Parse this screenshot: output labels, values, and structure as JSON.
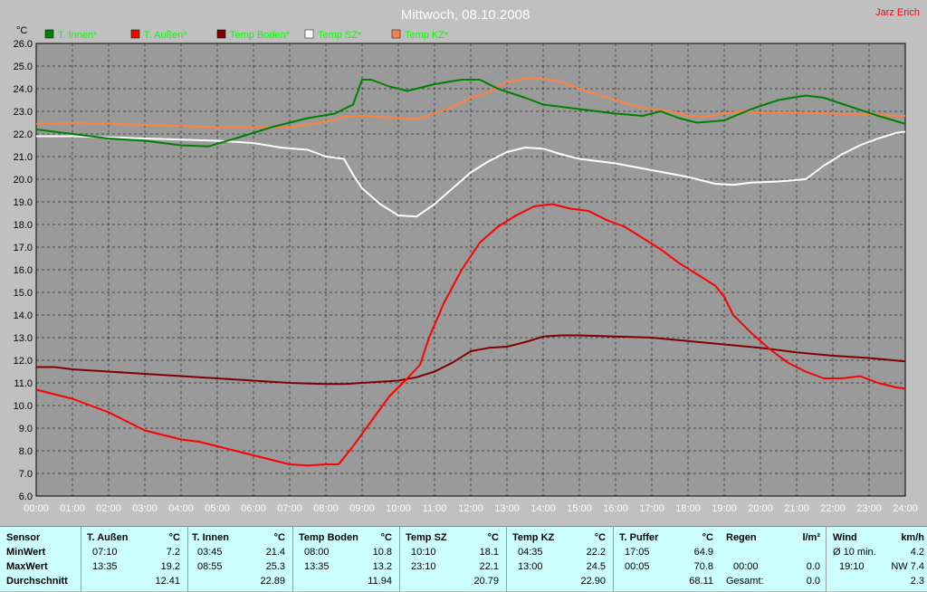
{
  "chart_data": {
    "type": "line",
    "title": "Mittwoch, 08.10.2008",
    "author": "Jarz Erich",
    "ylabel": "°C",
    "ylim": [
      6,
      26
    ],
    "xlim": [
      0,
      24
    ],
    "yticks": [
      "6.0",
      "7.0",
      "8.0",
      "9.0",
      "10.0",
      "11.0",
      "12.0",
      "13.0",
      "14.0",
      "15.0",
      "16.0",
      "17.0",
      "18.0",
      "19.0",
      "20.0",
      "21.0",
      "22.0",
      "23.0",
      "24.0",
      "25.0",
      "26.0"
    ],
    "xticks": [
      "00:00",
      "01:00",
      "02:00",
      "03:00",
      "04:00",
      "05:00",
      "06:00",
      "07:00",
      "08:00",
      "09:00",
      "10:00",
      "11:00",
      "12:00",
      "13:00",
      "14:00",
      "15:00",
      "16:00",
      "17:00",
      "18:00",
      "19:00",
      "20:00",
      "21:00",
      "22:00",
      "23:00",
      "24:00"
    ],
    "grid": true,
    "legend_position": "top",
    "series": [
      {
        "name": "T. Innen*",
        "color": "#008000",
        "points": [
          [
            0,
            22.2
          ],
          [
            1,
            22.0
          ],
          [
            2,
            21.8
          ],
          [
            3,
            21.7
          ],
          [
            4,
            21.5
          ],
          [
            4.75,
            21.45
          ],
          [
            5.5,
            21.8
          ],
          [
            6.5,
            22.3
          ],
          [
            7.5,
            22.7
          ],
          [
            8.25,
            22.9
          ],
          [
            8.75,
            23.3
          ],
          [
            9.0,
            24.4
          ],
          [
            9.25,
            24.4
          ],
          [
            9.75,
            24.1
          ],
          [
            10.25,
            23.9
          ],
          [
            11.0,
            24.2
          ],
          [
            11.75,
            24.4
          ],
          [
            12.25,
            24.4
          ],
          [
            12.75,
            24.0
          ],
          [
            13.5,
            23.6
          ],
          [
            14.0,
            23.3
          ],
          [
            15.0,
            23.1
          ],
          [
            16.0,
            22.9
          ],
          [
            16.75,
            22.8
          ],
          [
            17.25,
            23.0
          ],
          [
            17.75,
            22.7
          ],
          [
            18.25,
            22.5
          ],
          [
            19.0,
            22.6
          ],
          [
            19.75,
            23.1
          ],
          [
            20.5,
            23.5
          ],
          [
            21.25,
            23.7
          ],
          [
            21.75,
            23.6
          ],
          [
            22.5,
            23.2
          ],
          [
            23.25,
            22.8
          ],
          [
            24.0,
            22.45
          ]
        ]
      },
      {
        "name": "T. Außen*",
        "color": "#ff0000",
        "points": [
          [
            0,
            10.7
          ],
          [
            0.5,
            10.5
          ],
          [
            1.0,
            10.3
          ],
          [
            1.5,
            10.0
          ],
          [
            2.0,
            9.7
          ],
          [
            2.5,
            9.3
          ],
          [
            3.0,
            8.9
          ],
          [
            3.5,
            8.7
          ],
          [
            4.0,
            8.5
          ],
          [
            4.5,
            8.4
          ],
          [
            5.0,
            8.2
          ],
          [
            5.5,
            8.0
          ],
          [
            6.0,
            7.8
          ],
          [
            6.5,
            7.6
          ],
          [
            7.0,
            7.4
          ],
          [
            7.5,
            7.35
          ],
          [
            8.0,
            7.4
          ],
          [
            8.35,
            7.4
          ],
          [
            8.75,
            8.2
          ],
          [
            9.25,
            9.3
          ],
          [
            9.75,
            10.4
          ],
          [
            10.25,
            11.2
          ],
          [
            10.6,
            11.8
          ],
          [
            10.85,
            13.0
          ],
          [
            11.25,
            14.5
          ],
          [
            11.75,
            16.0
          ],
          [
            12.25,
            17.2
          ],
          [
            12.75,
            17.9
          ],
          [
            13.25,
            18.4
          ],
          [
            13.75,
            18.8
          ],
          [
            14.25,
            18.9
          ],
          [
            14.75,
            18.7
          ],
          [
            15.25,
            18.6
          ],
          [
            15.75,
            18.2
          ],
          [
            16.25,
            17.9
          ],
          [
            16.75,
            17.4
          ],
          [
            17.25,
            16.9
          ],
          [
            17.75,
            16.3
          ],
          [
            18.25,
            15.8
          ],
          [
            18.75,
            15.3
          ],
          [
            19.0,
            14.8
          ],
          [
            19.25,
            14.0
          ],
          [
            19.75,
            13.2
          ],
          [
            20.25,
            12.5
          ],
          [
            20.75,
            11.9
          ],
          [
            21.25,
            11.5
          ],
          [
            21.75,
            11.2
          ],
          [
            22.25,
            11.2
          ],
          [
            22.75,
            11.3
          ],
          [
            23.25,
            11.0
          ],
          [
            23.75,
            10.8
          ],
          [
            24.0,
            10.75
          ]
        ]
      },
      {
        "name": "Temp Boden*",
        "color": "#800000",
        "points": [
          [
            0,
            11.7
          ],
          [
            0.5,
            11.7
          ],
          [
            1.0,
            11.6
          ],
          [
            2.0,
            11.5
          ],
          [
            3.0,
            11.4
          ],
          [
            4.0,
            11.3
          ],
          [
            5.0,
            11.2
          ],
          [
            6.0,
            11.1
          ],
          [
            7.0,
            11.0
          ],
          [
            8.0,
            10.95
          ],
          [
            8.5,
            10.95
          ],
          [
            9.0,
            11.0
          ],
          [
            10.0,
            11.1
          ],
          [
            10.5,
            11.25
          ],
          [
            11.0,
            11.5
          ],
          [
            11.5,
            11.9
          ],
          [
            12.0,
            12.4
          ],
          [
            12.5,
            12.55
          ],
          [
            13.0,
            12.6
          ],
          [
            13.5,
            12.8
          ],
          [
            14.0,
            13.05
          ],
          [
            14.5,
            13.1
          ],
          [
            15.0,
            13.1
          ],
          [
            16.0,
            13.05
          ],
          [
            17.0,
            13.0
          ],
          [
            18.0,
            12.85
          ],
          [
            19.0,
            12.7
          ],
          [
            20.0,
            12.55
          ],
          [
            21.0,
            12.35
          ],
          [
            22.0,
            12.2
          ],
          [
            23.0,
            12.1
          ],
          [
            24.0,
            11.95
          ]
        ]
      },
      {
        "name": "Temp SZ*",
        "color": "#ffffff",
        "points": [
          [
            0,
            21.9
          ],
          [
            1.0,
            21.9
          ],
          [
            2.0,
            21.85
          ],
          [
            3.0,
            21.8
          ],
          [
            4.0,
            21.75
          ],
          [
            5.0,
            21.7
          ],
          [
            6.0,
            21.6
          ],
          [
            6.75,
            21.4
          ],
          [
            7.5,
            21.3
          ],
          [
            8.0,
            21.0
          ],
          [
            8.5,
            20.9
          ],
          [
            8.75,
            20.2
          ],
          [
            9.0,
            19.6
          ],
          [
            9.5,
            18.9
          ],
          [
            10.0,
            18.4
          ],
          [
            10.5,
            18.35
          ],
          [
            11.0,
            18.9
          ],
          [
            11.5,
            19.6
          ],
          [
            12.0,
            20.3
          ],
          [
            12.5,
            20.8
          ],
          [
            13.0,
            21.2
          ],
          [
            13.5,
            21.4
          ],
          [
            14.0,
            21.35
          ],
          [
            14.5,
            21.1
          ],
          [
            15.0,
            20.9
          ],
          [
            16.0,
            20.7
          ],
          [
            17.0,
            20.4
          ],
          [
            18.0,
            20.1
          ],
          [
            18.75,
            19.8
          ],
          [
            19.25,
            19.75
          ],
          [
            19.75,
            19.85
          ],
          [
            20.5,
            19.9
          ],
          [
            21.25,
            20.0
          ],
          [
            21.75,
            20.6
          ],
          [
            22.25,
            21.1
          ],
          [
            22.75,
            21.5
          ],
          [
            23.25,
            21.8
          ],
          [
            23.75,
            22.05
          ],
          [
            24.0,
            22.1
          ]
        ]
      },
      {
        "name": "Temp KZ*",
        "color": "#ff8040",
        "points": [
          [
            0,
            22.45
          ],
          [
            1.0,
            22.5
          ],
          [
            2.0,
            22.45
          ],
          [
            3.0,
            22.4
          ],
          [
            4.0,
            22.35
          ],
          [
            5.0,
            22.3
          ],
          [
            6.0,
            22.3
          ],
          [
            7.0,
            22.3
          ],
          [
            8.0,
            22.55
          ],
          [
            8.5,
            22.75
          ],
          [
            9.0,
            22.8
          ],
          [
            10.0,
            22.7
          ],
          [
            10.5,
            22.65
          ],
          [
            11.0,
            22.9
          ],
          [
            11.5,
            23.2
          ],
          [
            12.0,
            23.6
          ],
          [
            12.5,
            23.85
          ],
          [
            13.0,
            24.3
          ],
          [
            13.5,
            24.45
          ],
          [
            14.0,
            24.45
          ],
          [
            14.5,
            24.3
          ],
          [
            15.0,
            24.0
          ],
          [
            15.5,
            23.75
          ],
          [
            16.0,
            23.5
          ],
          [
            16.5,
            23.25
          ],
          [
            17.0,
            23.1
          ],
          [
            17.5,
            23.0
          ],
          [
            18.0,
            22.8
          ],
          [
            18.5,
            22.75
          ],
          [
            19.0,
            22.9
          ],
          [
            19.5,
            23.0
          ],
          [
            20.0,
            22.95
          ],
          [
            21.0,
            22.95
          ],
          [
            22.0,
            22.9
          ],
          [
            23.0,
            22.85
          ],
          [
            24.0,
            22.8
          ]
        ]
      }
    ]
  },
  "stats": {
    "row_labels": [
      "Sensor",
      "MinWert",
      "MaxWert",
      "Durchschnitt"
    ],
    "columns": [
      {
        "name": "T. Außen",
        "unit": "°C",
        "min_time": "07:10",
        "min": "7.2",
        "max_time": "13:35",
        "max": "19.2",
        "avg": "12.41"
      },
      {
        "name": "T. Innen",
        "unit": "°C",
        "min_time": "03:45",
        "min": "21.4",
        "max_time": "08:55",
        "max": "25.3",
        "avg": "22.89"
      },
      {
        "name": "Temp Boden",
        "unit": "°C",
        "min_time": "08:00",
        "min": "10.8",
        "max_time": "13:35",
        "max": "13.2",
        "avg": "11.94"
      },
      {
        "name": "Temp SZ",
        "unit": "°C",
        "min_time": "10:10",
        "min": "18.1",
        "max_time": "23:10",
        "max": "22.1",
        "avg": "20.79"
      },
      {
        "name": "Temp KZ",
        "unit": "°C",
        "min_time": "04:35",
        "min": "22.2",
        "max_time": "13:00",
        "max": "24.5",
        "avg": "22.90"
      },
      {
        "name": "T. Puffer",
        "unit": "°C",
        "min_time": "17:05",
        "min": "64.9",
        "max_time": "00:05",
        "max": "70.8",
        "avg": "68.11"
      }
    ],
    "regen": {
      "name": "Regen",
      "unit": "l/m²",
      "row2_time": "00:00",
      "row2_value": "0.0",
      "row3_label": "Gesamt:",
      "row3_value": "0.0"
    },
    "wind": {
      "name": "Wind",
      "unit": "km/h",
      "row1_label": "Ø 10 min.",
      "row1_value": "4.2",
      "row2_time": "19:10",
      "row2_value": "NW 7.4",
      "row3_value": "2.3"
    }
  }
}
